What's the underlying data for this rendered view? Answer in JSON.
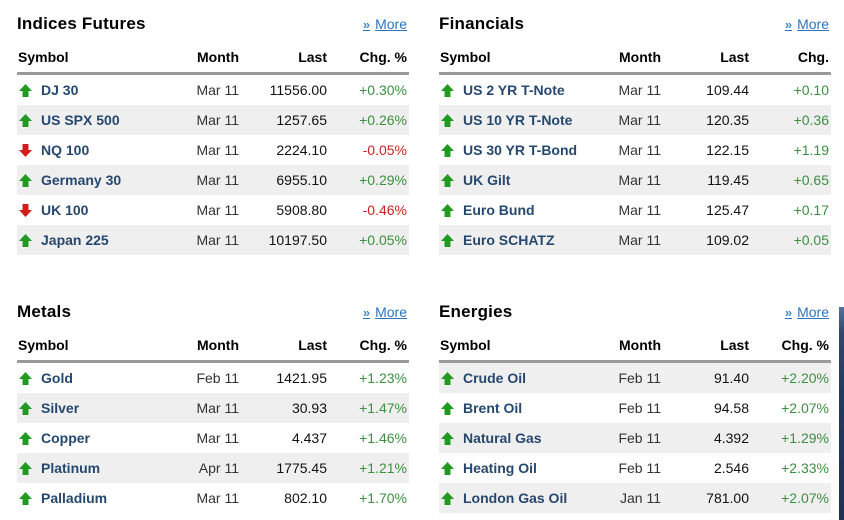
{
  "colors": {
    "arrow_up": "#229a22",
    "arrow_down": "#d11c1c",
    "change_up": "#3d8f41",
    "change_down": "#cc2222",
    "symbol_text": "#26486e",
    "link_blue": "#2b74bf"
  },
  "panels": [
    {
      "title": "Indices Futures",
      "more_label": "More",
      "columns": [
        "Symbol",
        "Month",
        "Last",
        "Chg. %"
      ],
      "rows": [
        {
          "trend": "up",
          "symbol": "DJ 30",
          "month": "Mar 11",
          "last": "11556.00",
          "change": "+0.30%"
        },
        {
          "trend": "up",
          "symbol": "US SPX 500",
          "month": "Mar 11",
          "last": "1257.65",
          "change": "+0.26%"
        },
        {
          "trend": "down",
          "symbol": "NQ 100",
          "month": "Mar 11",
          "last": "2224.10",
          "change": "-0.05%"
        },
        {
          "trend": "up",
          "symbol": "Germany 30",
          "month": "Mar 11",
          "last": "6955.10",
          "change": "+0.29%"
        },
        {
          "trend": "down",
          "symbol": "UK 100",
          "month": "Mar 11",
          "last": "5908.80",
          "change": "-0.46%"
        },
        {
          "trend": "up",
          "symbol": "Japan 225",
          "month": "Mar 11",
          "last": "10197.50",
          "change": "+0.05%"
        }
      ]
    },
    {
      "title": "Financials",
      "more_label": "More",
      "columns": [
        "Symbol",
        "Month",
        "Last",
        "Chg."
      ],
      "rows": [
        {
          "trend": "up",
          "symbol": "US 2 YR T-Note",
          "month": "Mar 11",
          "last": "109.44",
          "change": "+0.10"
        },
        {
          "trend": "up",
          "symbol": "US 10 YR T-Note",
          "month": "Mar 11",
          "last": "120.35",
          "change": "+0.36"
        },
        {
          "trend": "up",
          "symbol": "US 30 YR T-Bond",
          "month": "Mar 11",
          "last": "122.15",
          "change": "+1.19"
        },
        {
          "trend": "up",
          "symbol": "UK Gilt",
          "month": "Mar 11",
          "last": "119.45",
          "change": "+0.65"
        },
        {
          "trend": "up",
          "symbol": "Euro Bund",
          "month": "Mar 11",
          "last": "125.47",
          "change": "+0.17"
        },
        {
          "trend": "up",
          "symbol": "Euro SCHATZ",
          "month": "Mar 11",
          "last": "109.02",
          "change": "+0.05"
        }
      ]
    },
    {
      "title": "Metals",
      "more_label": "More",
      "columns": [
        "Symbol",
        "Month",
        "Last",
        "Chg. %"
      ],
      "rows": [
        {
          "trend": "up",
          "symbol": "Gold",
          "month": "Feb 11",
          "last": "1421.95",
          "change": "+1.23%"
        },
        {
          "trend": "up",
          "symbol": "Silver",
          "month": "Mar 11",
          "last": "30.93",
          "change": "+1.47%"
        },
        {
          "trend": "up",
          "symbol": "Copper",
          "month": "Mar 11",
          "last": "4.437",
          "change": "+1.46%"
        },
        {
          "trend": "up",
          "symbol": "Platinum",
          "month": "Apr 11",
          "last": "1775.45",
          "change": "+1.21%"
        },
        {
          "trend": "up",
          "symbol": "Palladium",
          "month": "Mar 11",
          "last": "802.10",
          "change": "+1.70%"
        }
      ]
    },
    {
      "title": "Energies",
      "more_label": "More",
      "columns": [
        "Symbol",
        "Month",
        "Last",
        "Chg. %"
      ],
      "rows": [
        {
          "trend": "up",
          "symbol": "Crude Oil",
          "month": "Feb 11",
          "last": "91.40",
          "change": "+2.20%"
        },
        {
          "trend": "up",
          "symbol": "Brent Oil",
          "month": "Feb 11",
          "last": "94.58",
          "change": "+2.07%"
        },
        {
          "trend": "up",
          "symbol": "Natural Gas",
          "month": "Feb 11",
          "last": "4.392",
          "change": "+1.29%"
        },
        {
          "trend": "up",
          "symbol": "Heating Oil",
          "month": "Feb 11",
          "last": "2.546",
          "change": "+2.33%"
        },
        {
          "trend": "up",
          "symbol": "London Gas Oil",
          "month": "Jan 11",
          "last": "781.00",
          "change": "+2.07%"
        }
      ]
    }
  ]
}
